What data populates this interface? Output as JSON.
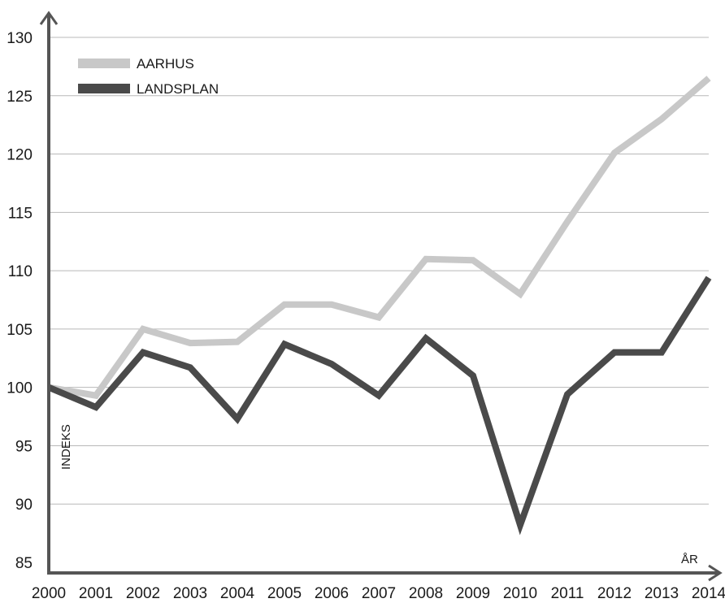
{
  "chart_data": {
    "type": "line",
    "title": "",
    "xlabel": "ÅR",
    "ylabel": "INDEKS",
    "x": [
      "2000",
      "2001",
      "2002",
      "2003",
      "2004",
      "2005",
      "2006",
      "2007",
      "2008",
      "2009",
      "2010",
      "2011",
      "2012",
      "2013",
      "2014"
    ],
    "yticks": [
      "85",
      "90",
      "95",
      "100",
      "105",
      "110",
      "115",
      "120",
      "125",
      "130"
    ],
    "ylim": [
      85,
      130
    ],
    "grid": true,
    "legend_position": "top-left",
    "series": [
      {
        "name": "AARHUS",
        "color": "#c8c8c8",
        "values": [
          100.0,
          99.3,
          105.0,
          103.8,
          103.9,
          107.1,
          107.1,
          106.0,
          111.0,
          110.9,
          108.0,
          114.2,
          120.1,
          123.0,
          126.5
        ]
      },
      {
        "name": "LANDSPLAN",
        "color": "#4a4a4a",
        "values": [
          100.0,
          98.3,
          103.0,
          101.7,
          97.3,
          103.7,
          102.0,
          99.3,
          104.2,
          101.0,
          88.2,
          99.4,
          103.0,
          103.0,
          109.4
        ]
      }
    ]
  }
}
